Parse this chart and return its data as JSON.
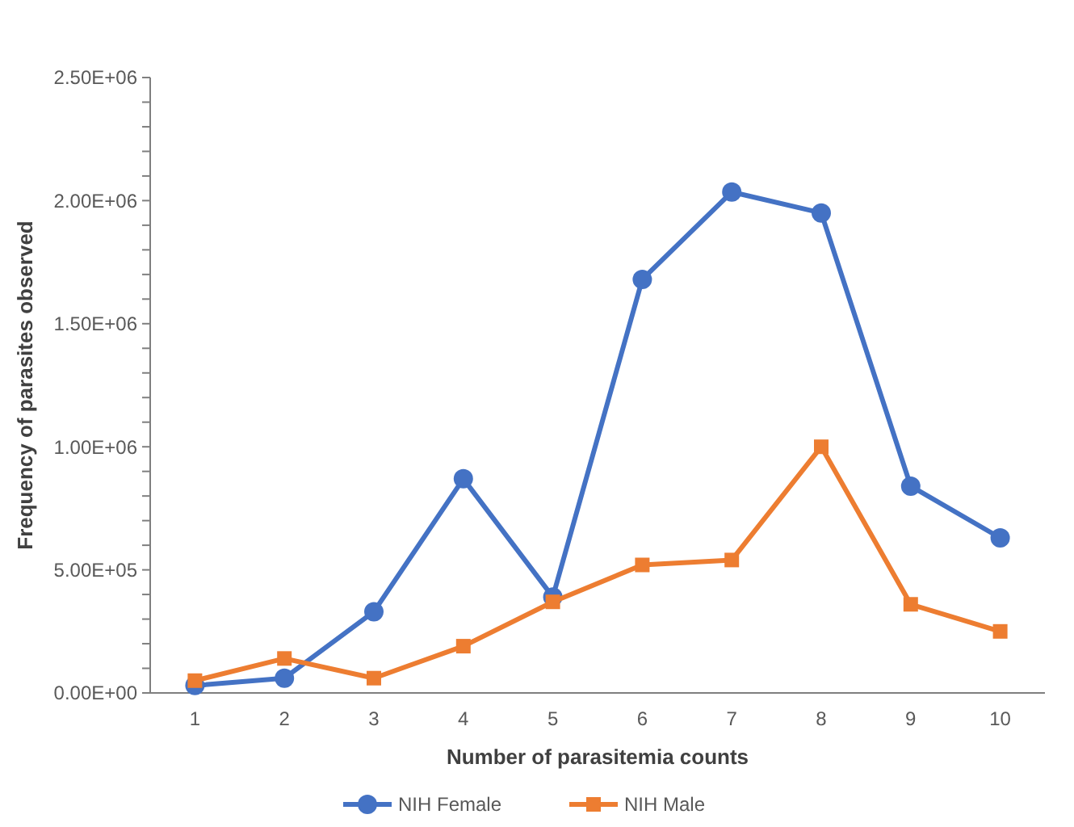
{
  "chart_data": {
    "type": "line",
    "xlabel": "Number of parasitemia counts",
    "ylabel": "Frequency of parasites observed",
    "categories": [
      "1",
      "2",
      "3",
      "4",
      "5",
      "6",
      "7",
      "8",
      "9",
      "10"
    ],
    "series": [
      {
        "name": "NIH Female",
        "color": "#4472c4",
        "marker": "circle",
        "values": [
          30000,
          60000,
          330000,
          870000,
          390000,
          1680000,
          2035000,
          1950000,
          840000,
          630000
        ]
      },
      {
        "name": "NIH Male",
        "color": "#ed7d31",
        "marker": "square",
        "values": [
          50000,
          140000,
          60000,
          190000,
          370000,
          520000,
          540000,
          1000000,
          360000,
          250000
        ]
      }
    ],
    "ylim": [
      0,
      2500000
    ],
    "yticks": [
      {
        "value": 0,
        "label": "0.00E+00"
      },
      {
        "value": 100000,
        "label": null
      },
      {
        "value": 200000,
        "label": null
      },
      {
        "value": 300000,
        "label": null
      },
      {
        "value": 400000,
        "label": null
      },
      {
        "value": 500000,
        "label": "5.00E+05"
      },
      {
        "value": 600000,
        "label": null
      },
      {
        "value": 700000,
        "label": null
      },
      {
        "value": 800000,
        "label": null
      },
      {
        "value": 900000,
        "label": null
      },
      {
        "value": 1000000,
        "label": "1.00E+06"
      },
      {
        "value": 1100000,
        "label": null
      },
      {
        "value": 1200000,
        "label": null
      },
      {
        "value": 1300000,
        "label": null
      },
      {
        "value": 1400000,
        "label": null
      },
      {
        "value": 1500000,
        "label": "1.50E+06"
      },
      {
        "value": 1600000,
        "label": null
      },
      {
        "value": 1700000,
        "label": null
      },
      {
        "value": 1800000,
        "label": null
      },
      {
        "value": 1900000,
        "label": null
      },
      {
        "value": 2000000,
        "label": "2.00E+06"
      },
      {
        "value": 2100000,
        "label": null
      },
      {
        "value": 2200000,
        "label": null
      },
      {
        "value": 2300000,
        "label": null
      },
      {
        "value": 2400000,
        "label": null
      },
      {
        "value": 2500000,
        "label": "2.50E+06"
      }
    ],
    "grid": false,
    "legend": "bottom",
    "line_style": "solid"
  }
}
